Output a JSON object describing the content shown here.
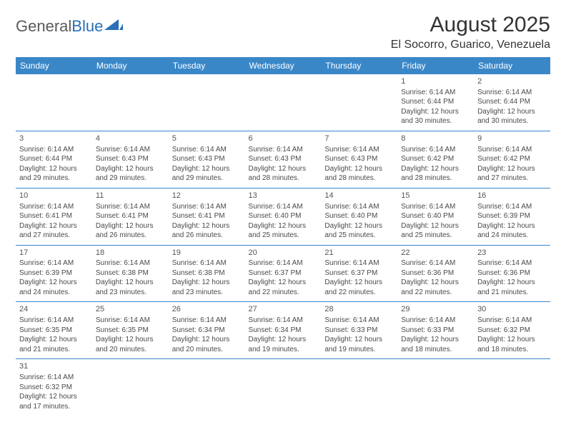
{
  "logo": {
    "general": "General",
    "blue": "Blue"
  },
  "title": "August 2025",
  "location": "El Socorro, Guarico, Venezuela",
  "colors": {
    "header_bg": "#3a87c8",
    "header_text": "#ffffff",
    "row_border": "#3a87c8",
    "logo_blue": "#2970b8",
    "text": "#4a4a4a"
  },
  "day_headers": [
    "Sunday",
    "Monday",
    "Tuesday",
    "Wednesday",
    "Thursday",
    "Friday",
    "Saturday"
  ],
  "weeks": [
    [
      null,
      null,
      null,
      null,
      null,
      {
        "n": "1",
        "sr": "Sunrise: 6:14 AM",
        "ss": "Sunset: 6:44 PM",
        "d1": "Daylight: 12 hours",
        "d2": "and 30 minutes."
      },
      {
        "n": "2",
        "sr": "Sunrise: 6:14 AM",
        "ss": "Sunset: 6:44 PM",
        "d1": "Daylight: 12 hours",
        "d2": "and 30 minutes."
      }
    ],
    [
      {
        "n": "3",
        "sr": "Sunrise: 6:14 AM",
        "ss": "Sunset: 6:44 PM",
        "d1": "Daylight: 12 hours",
        "d2": "and 29 minutes."
      },
      {
        "n": "4",
        "sr": "Sunrise: 6:14 AM",
        "ss": "Sunset: 6:43 PM",
        "d1": "Daylight: 12 hours",
        "d2": "and 29 minutes."
      },
      {
        "n": "5",
        "sr": "Sunrise: 6:14 AM",
        "ss": "Sunset: 6:43 PM",
        "d1": "Daylight: 12 hours",
        "d2": "and 29 minutes."
      },
      {
        "n": "6",
        "sr": "Sunrise: 6:14 AM",
        "ss": "Sunset: 6:43 PM",
        "d1": "Daylight: 12 hours",
        "d2": "and 28 minutes."
      },
      {
        "n": "7",
        "sr": "Sunrise: 6:14 AM",
        "ss": "Sunset: 6:43 PM",
        "d1": "Daylight: 12 hours",
        "d2": "and 28 minutes."
      },
      {
        "n": "8",
        "sr": "Sunrise: 6:14 AM",
        "ss": "Sunset: 6:42 PM",
        "d1": "Daylight: 12 hours",
        "d2": "and 28 minutes."
      },
      {
        "n": "9",
        "sr": "Sunrise: 6:14 AM",
        "ss": "Sunset: 6:42 PM",
        "d1": "Daylight: 12 hours",
        "d2": "and 27 minutes."
      }
    ],
    [
      {
        "n": "10",
        "sr": "Sunrise: 6:14 AM",
        "ss": "Sunset: 6:41 PM",
        "d1": "Daylight: 12 hours",
        "d2": "and 27 minutes."
      },
      {
        "n": "11",
        "sr": "Sunrise: 6:14 AM",
        "ss": "Sunset: 6:41 PM",
        "d1": "Daylight: 12 hours",
        "d2": "and 26 minutes."
      },
      {
        "n": "12",
        "sr": "Sunrise: 6:14 AM",
        "ss": "Sunset: 6:41 PM",
        "d1": "Daylight: 12 hours",
        "d2": "and 26 minutes."
      },
      {
        "n": "13",
        "sr": "Sunrise: 6:14 AM",
        "ss": "Sunset: 6:40 PM",
        "d1": "Daylight: 12 hours",
        "d2": "and 25 minutes."
      },
      {
        "n": "14",
        "sr": "Sunrise: 6:14 AM",
        "ss": "Sunset: 6:40 PM",
        "d1": "Daylight: 12 hours",
        "d2": "and 25 minutes."
      },
      {
        "n": "15",
        "sr": "Sunrise: 6:14 AM",
        "ss": "Sunset: 6:40 PM",
        "d1": "Daylight: 12 hours",
        "d2": "and 25 minutes."
      },
      {
        "n": "16",
        "sr": "Sunrise: 6:14 AM",
        "ss": "Sunset: 6:39 PM",
        "d1": "Daylight: 12 hours",
        "d2": "and 24 minutes."
      }
    ],
    [
      {
        "n": "17",
        "sr": "Sunrise: 6:14 AM",
        "ss": "Sunset: 6:39 PM",
        "d1": "Daylight: 12 hours",
        "d2": "and 24 minutes."
      },
      {
        "n": "18",
        "sr": "Sunrise: 6:14 AM",
        "ss": "Sunset: 6:38 PM",
        "d1": "Daylight: 12 hours",
        "d2": "and 23 minutes."
      },
      {
        "n": "19",
        "sr": "Sunrise: 6:14 AM",
        "ss": "Sunset: 6:38 PM",
        "d1": "Daylight: 12 hours",
        "d2": "and 23 minutes."
      },
      {
        "n": "20",
        "sr": "Sunrise: 6:14 AM",
        "ss": "Sunset: 6:37 PM",
        "d1": "Daylight: 12 hours",
        "d2": "and 22 minutes."
      },
      {
        "n": "21",
        "sr": "Sunrise: 6:14 AM",
        "ss": "Sunset: 6:37 PM",
        "d1": "Daylight: 12 hours",
        "d2": "and 22 minutes."
      },
      {
        "n": "22",
        "sr": "Sunrise: 6:14 AM",
        "ss": "Sunset: 6:36 PM",
        "d1": "Daylight: 12 hours",
        "d2": "and 22 minutes."
      },
      {
        "n": "23",
        "sr": "Sunrise: 6:14 AM",
        "ss": "Sunset: 6:36 PM",
        "d1": "Daylight: 12 hours",
        "d2": "and 21 minutes."
      }
    ],
    [
      {
        "n": "24",
        "sr": "Sunrise: 6:14 AM",
        "ss": "Sunset: 6:35 PM",
        "d1": "Daylight: 12 hours",
        "d2": "and 21 minutes."
      },
      {
        "n": "25",
        "sr": "Sunrise: 6:14 AM",
        "ss": "Sunset: 6:35 PM",
        "d1": "Daylight: 12 hours",
        "d2": "and 20 minutes."
      },
      {
        "n": "26",
        "sr": "Sunrise: 6:14 AM",
        "ss": "Sunset: 6:34 PM",
        "d1": "Daylight: 12 hours",
        "d2": "and 20 minutes."
      },
      {
        "n": "27",
        "sr": "Sunrise: 6:14 AM",
        "ss": "Sunset: 6:34 PM",
        "d1": "Daylight: 12 hours",
        "d2": "and 19 minutes."
      },
      {
        "n": "28",
        "sr": "Sunrise: 6:14 AM",
        "ss": "Sunset: 6:33 PM",
        "d1": "Daylight: 12 hours",
        "d2": "and 19 minutes."
      },
      {
        "n": "29",
        "sr": "Sunrise: 6:14 AM",
        "ss": "Sunset: 6:33 PM",
        "d1": "Daylight: 12 hours",
        "d2": "and 18 minutes."
      },
      {
        "n": "30",
        "sr": "Sunrise: 6:14 AM",
        "ss": "Sunset: 6:32 PM",
        "d1": "Daylight: 12 hours",
        "d2": "and 18 minutes."
      }
    ],
    [
      {
        "n": "31",
        "sr": "Sunrise: 6:14 AM",
        "ss": "Sunset: 6:32 PM",
        "d1": "Daylight: 12 hours",
        "d2": "and 17 minutes."
      },
      null,
      null,
      null,
      null,
      null,
      null
    ]
  ]
}
